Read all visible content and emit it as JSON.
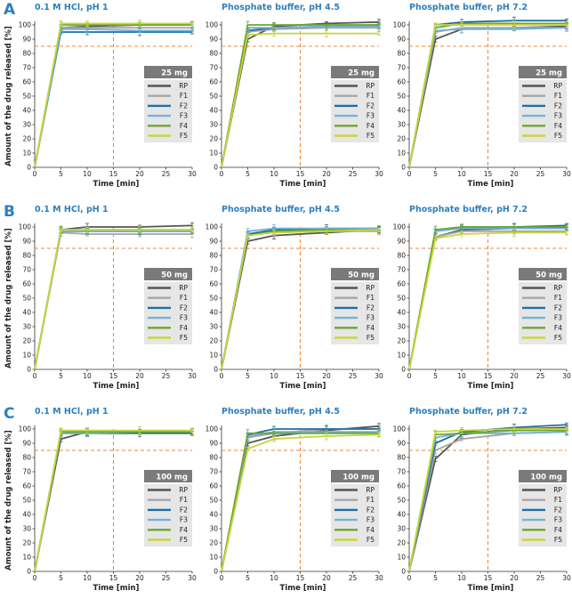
{
  "figure": {
    "ylabel": "Amount of the drug released [%]",
    "xlabel": "Time [min]",
    "series_colors": {
      "RP": "#555555",
      "F1": "#a6a6a6",
      "F2": "#1f6fa6",
      "F3": "#6fb3dd",
      "F4": "#6ea62c",
      "F5": "#c8d63a"
    },
    "threshold_color": "#ee8a3c",
    "legend_bg": "#e6e6e6",
    "legend_head_bg": "#7a7a7a",
    "title_color": "#2d7fbd"
  },
  "chart_data": [
    {
      "type": "line",
      "row": "A",
      "title": "0.1 M HCl, pH 1",
      "dose": "25 mg",
      "x": [
        0,
        5,
        10,
        20,
        30
      ],
      "xlim": [
        0,
        30
      ],
      "ylim": [
        0,
        100
      ],
      "xticks": [
        0,
        5,
        10,
        15,
        20,
        25,
        30
      ],
      "yticks": [
        0,
        10,
        20,
        30,
        40,
        50,
        60,
        70,
        80,
        90,
        100
      ],
      "reference_lines": {
        "y": 85,
        "x": 15
      },
      "series": [
        {
          "name": "RP",
          "values": [
            0,
            98,
            99,
            100,
            100
          ]
        },
        {
          "name": "F1",
          "values": [
            0,
            98,
            98,
            98,
            98
          ]
        },
        {
          "name": "F2",
          "values": [
            0,
            95,
            95,
            95,
            95
          ]
        },
        {
          "name": "F3",
          "values": [
            0,
            97,
            97,
            96,
            96
          ]
        },
        {
          "name": "F4",
          "values": [
            0,
            100,
            100,
            100,
            100
          ]
        },
        {
          "name": "F5",
          "values": [
            0,
            101,
            101,
            101,
            101
          ]
        }
      ]
    },
    {
      "type": "line",
      "row": "A",
      "title": "Phosphate buffer, pH 4.5",
      "dose": "25 mg",
      "x": [
        0,
        5,
        10,
        20,
        30
      ],
      "xlim": [
        0,
        30
      ],
      "ylim": [
        0,
        100
      ],
      "xticks": [
        0,
        5,
        10,
        15,
        20,
        25,
        30
      ],
      "yticks": [
        0,
        10,
        20,
        30,
        40,
        50,
        60,
        70,
        80,
        90,
        100
      ],
      "reference_lines": {
        "y": 85,
        "x": 15
      },
      "series": [
        {
          "name": "RP",
          "values": [
            0,
            90,
            99,
            101,
            102
          ]
        },
        {
          "name": "F1",
          "values": [
            0,
            95,
            97,
            98,
            98
          ]
        },
        {
          "name": "F2",
          "values": [
            0,
            96,
            98,
            99,
            100
          ]
        },
        {
          "name": "F3",
          "values": [
            0,
            98,
            98,
            99,
            99
          ]
        },
        {
          "name": "F4",
          "values": [
            0,
            100,
            100,
            100,
            100
          ]
        },
        {
          "name": "F5",
          "values": [
            0,
            93,
            94,
            94,
            94
          ]
        }
      ]
    },
    {
      "type": "line",
      "row": "A",
      "title": "Phosphate buffer, pH 7.2",
      "dose": "25 mg",
      "x": [
        0,
        5,
        10,
        20,
        30
      ],
      "xlim": [
        0,
        30
      ],
      "ylim": [
        0,
        100
      ],
      "xticks": [
        0,
        5,
        10,
        15,
        20,
        25,
        30
      ],
      "yticks": [
        0,
        10,
        20,
        30,
        40,
        50,
        60,
        70,
        80,
        90,
        100
      ],
      "reference_lines": {
        "y": 85,
        "x": 15
      },
      "series": [
        {
          "name": "RP",
          "values": [
            0,
            90,
            97,
            98,
            99
          ]
        },
        {
          "name": "F1",
          "values": [
            0,
            95,
            98,
            98,
            98
          ]
        },
        {
          "name": "F2",
          "values": [
            0,
            100,
            102,
            103,
            103
          ]
        },
        {
          "name": "F3",
          "values": [
            0,
            96,
            97,
            97,
            98
          ]
        },
        {
          "name": "F4",
          "values": [
            0,
            98,
            101,
            101,
            101
          ]
        },
        {
          "name": "F5",
          "values": [
            0,
            100,
            100,
            100,
            100
          ]
        }
      ]
    },
    {
      "type": "line",
      "row": "B",
      "title": "0.1 M HCl, pH 1",
      "dose": "50 mg",
      "x": [
        0,
        5,
        10,
        20,
        30
      ],
      "xlim": [
        0,
        30
      ],
      "ylim": [
        0,
        100
      ],
      "xticks": [
        0,
        5,
        10,
        15,
        20,
        25,
        30
      ],
      "yticks": [
        0,
        10,
        20,
        30,
        40,
        50,
        60,
        70,
        80,
        90,
        100
      ],
      "reference_lines": {
        "y": 85,
        "x": 15
      },
      "series": [
        {
          "name": "RP",
          "values": [
            0,
            98,
            100,
            100,
            101
          ]
        },
        {
          "name": "F1",
          "values": [
            0,
            96,
            95,
            95,
            95
          ]
        },
        {
          "name": "F2",
          "values": [
            0,
            97,
            97,
            97,
            97
          ]
        },
        {
          "name": "F3",
          "values": [
            0,
            97,
            97,
            97,
            97
          ]
        },
        {
          "name": "F4",
          "values": [
            0,
            98,
            98,
            98,
            98
          ]
        },
        {
          "name": "F5",
          "values": [
            0,
            98,
            98,
            98,
            98
          ]
        }
      ]
    },
    {
      "type": "line",
      "row": "B",
      "title": "Phosphate buffer, pH 4.5",
      "dose": "50 mg",
      "x": [
        0,
        5,
        10,
        20,
        30
      ],
      "xlim": [
        0,
        30
      ],
      "ylim": [
        0,
        100
      ],
      "xticks": [
        0,
        5,
        10,
        15,
        20,
        25,
        30
      ],
      "yticks": [
        0,
        10,
        20,
        30,
        40,
        50,
        60,
        70,
        80,
        90,
        100
      ],
      "reference_lines": {
        "y": 85,
        "x": 15
      },
      "series": [
        {
          "name": "RP",
          "values": [
            0,
            90,
            94,
            96,
            98
          ]
        },
        {
          "name": "F1",
          "values": [
            0,
            95,
            96,
            97,
            97
          ]
        },
        {
          "name": "F2",
          "values": [
            0,
            95,
            98,
            99,
            99
          ]
        },
        {
          "name": "F3",
          "values": [
            0,
            97,
            99,
            99,
            99
          ]
        },
        {
          "name": "F4",
          "values": [
            0,
            94,
            97,
            98,
            98
          ]
        },
        {
          "name": "F5",
          "values": [
            0,
            94,
            96,
            97,
            98
          ]
        }
      ]
    },
    {
      "type": "line",
      "row": "B",
      "title": "Phosphate buffer, pH 7.2",
      "dose": "50 mg",
      "x": [
        0,
        5,
        10,
        20,
        30
      ],
      "xlim": [
        0,
        30
      ],
      "ylim": [
        0,
        100
      ],
      "xticks": [
        0,
        5,
        10,
        15,
        20,
        25,
        30
      ],
      "yticks": [
        0,
        10,
        20,
        30,
        40,
        50,
        60,
        70,
        80,
        90,
        100
      ],
      "reference_lines": {
        "y": 85,
        "x": 15
      },
      "series": [
        {
          "name": "RP",
          "values": [
            0,
            93,
            98,
            99,
            100
          ]
        },
        {
          "name": "F1",
          "values": [
            0,
            93,
            97,
            97,
            97
          ]
        },
        {
          "name": "F2",
          "values": [
            0,
            97,
            100,
            100,
            101
          ]
        },
        {
          "name": "F3",
          "values": [
            0,
            97,
            99,
            99,
            99
          ]
        },
        {
          "name": "F4",
          "values": [
            0,
            98,
            100,
            100,
            100
          ]
        },
        {
          "name": "F5",
          "values": [
            0,
            92,
            95,
            96,
            96
          ]
        }
      ]
    },
    {
      "type": "line",
      "row": "C",
      "title": "0.1 M HCl, pH 1",
      "dose": "100 mg",
      "x": [
        0,
        5,
        10,
        20,
        30
      ],
      "xlim": [
        0,
        30
      ],
      "ylim": [
        0,
        100
      ],
      "xticks": [
        0,
        5,
        10,
        15,
        20,
        25,
        30
      ],
      "yticks": [
        0,
        10,
        20,
        30,
        40,
        50,
        60,
        70,
        80,
        90,
        100
      ],
      "reference_lines": {
        "y": 85,
        "x": 15
      },
      "series": [
        {
          "name": "RP",
          "values": [
            0,
            93,
            98,
            98,
            98
          ]
        },
        {
          "name": "F1",
          "values": [
            0,
            97,
            98,
            98,
            98
          ]
        },
        {
          "name": "F2",
          "values": [
            0,
            97,
            97,
            97,
            97
          ]
        },
        {
          "name": "F3",
          "values": [
            0,
            97,
            97,
            98,
            98
          ]
        },
        {
          "name": "F4",
          "values": [
            0,
            98,
            98,
            98,
            98
          ]
        },
        {
          "name": "F5",
          "values": [
            0,
            99,
            99,
            99,
            99
          ]
        }
      ]
    },
    {
      "type": "line",
      "row": "C",
      "title": "Phosphate buffer, pH 4.5",
      "dose": "100 mg",
      "x": [
        0,
        5,
        10,
        20,
        30
      ],
      "xlim": [
        0,
        30
      ],
      "ylim": [
        0,
        100
      ],
      "xticks": [
        0,
        5,
        10,
        15,
        20,
        25,
        30
      ],
      "yticks": [
        0,
        10,
        20,
        30,
        40,
        50,
        60,
        70,
        80,
        90,
        100
      ],
      "reference_lines": {
        "y": 85,
        "x": 15
      },
      "series": [
        {
          "name": "RP",
          "values": [
            0,
            90,
            95,
            99,
            102
          ]
        },
        {
          "name": "F1",
          "values": [
            0,
            94,
            97,
            100,
            100
          ]
        },
        {
          "name": "F2",
          "values": [
            0,
            96,
            100,
            100,
            100
          ]
        },
        {
          "name": "F3",
          "values": [
            0,
            95,
            98,
            98,
            98
          ]
        },
        {
          "name": "F4",
          "values": [
            0,
            97,
            97,
            97,
            97
          ]
        },
        {
          "name": "F5",
          "values": [
            0,
            86,
            93,
            95,
            96
          ]
        }
      ]
    },
    {
      "type": "line",
      "row": "C",
      "title": "Phosphate buffer, pH 7.2",
      "dose": "100 mg",
      "x": [
        0,
        5,
        10,
        20,
        30
      ],
      "xlim": [
        0,
        30
      ],
      "ylim": [
        0,
        100
      ],
      "xticks": [
        0,
        5,
        10,
        15,
        20,
        25,
        30
      ],
      "yticks": [
        0,
        10,
        20,
        30,
        40,
        50,
        60,
        70,
        80,
        90,
        100
      ],
      "reference_lines": {
        "y": 85,
        "x": 15
      },
      "series": [
        {
          "name": "RP",
          "values": [
            0,
            79,
            96,
            100,
            101
          ]
        },
        {
          "name": "F1",
          "values": [
            0,
            85,
            93,
            97,
            98
          ]
        },
        {
          "name": "F2",
          "values": [
            0,
            90,
            98,
            101,
            103
          ]
        },
        {
          "name": "F3",
          "values": [
            0,
            94,
            97,
            97,
            98
          ]
        },
        {
          "name": "F4",
          "values": [
            0,
            96,
            97,
            99,
            99
          ]
        },
        {
          "name": "F5",
          "values": [
            0,
            98,
            99,
            100,
            100
          ]
        }
      ]
    }
  ]
}
